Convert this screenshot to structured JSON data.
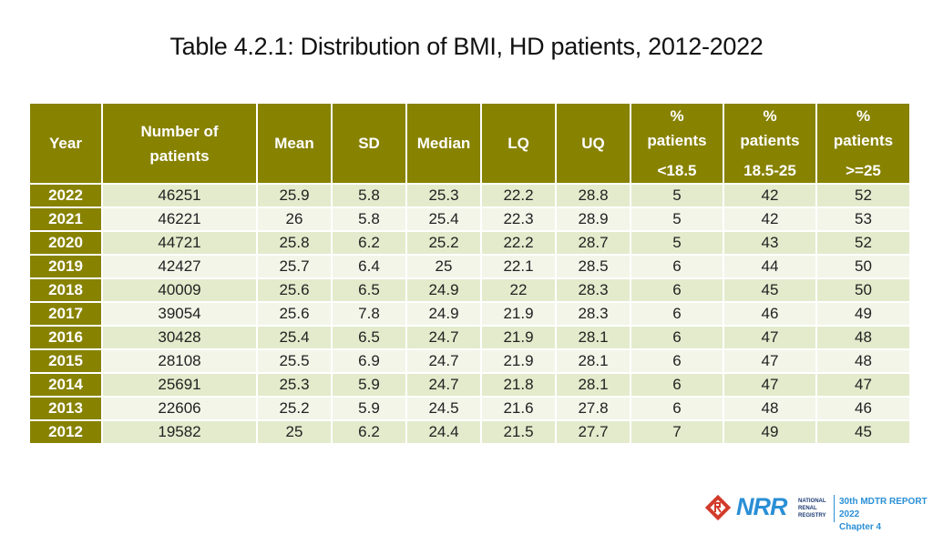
{
  "title": "Table 4.2.1: Distribution of BMI, HD patients, 2012-2022",
  "table": {
    "headers": {
      "year": "Year",
      "patients_l1": "Number of",
      "patients_l2": "patients",
      "mean": "Mean",
      "sd": "SD",
      "median": "Median",
      "lq": "LQ",
      "uq": "UQ",
      "pct1_l1": "%",
      "pct1_l2": "patients",
      "pct1_l3": "<18.5",
      "pct2_l1": "%",
      "pct2_l2": "patients",
      "pct2_l3": "18.5-25",
      "pct3_l1": "%",
      "pct3_l2": "patients",
      "pct3_l3": ">=25"
    },
    "rows": [
      [
        "2022",
        "46251",
        "25.9",
        "5.8",
        "25.3",
        "22.2",
        "28.8",
        "5",
        "42",
        "52"
      ],
      [
        "2021",
        "46221",
        "26",
        "5.8",
        "25.4",
        "22.3",
        "28.9",
        "5",
        "42",
        "53"
      ],
      [
        "2020",
        "44721",
        "25.8",
        "6.2",
        "25.2",
        "22.2",
        "28.7",
        "5",
        "43",
        "52"
      ],
      [
        "2019",
        "42427",
        "25.7",
        "6.4",
        "25",
        "22.1",
        "28.5",
        "6",
        "44",
        "50"
      ],
      [
        "2018",
        "40009",
        "25.6",
        "6.5",
        "24.9",
        "22",
        "28.3",
        "6",
        "45",
        "50"
      ],
      [
        "2017",
        "39054",
        "25.6",
        "7.8",
        "24.9",
        "21.9",
        "28.3",
        "6",
        "46",
        "49"
      ],
      [
        "2016",
        "30428",
        "25.4",
        "6.5",
        "24.7",
        "21.9",
        "28.1",
        "6",
        "47",
        "48"
      ],
      [
        "2015",
        "28108",
        "25.5",
        "6.9",
        "24.7",
        "21.9",
        "28.1",
        "6",
        "47",
        "48"
      ],
      [
        "2014",
        "25691",
        "25.3",
        "5.9",
        "24.7",
        "21.8",
        "28.1",
        "6",
        "47",
        "47"
      ],
      [
        "2013",
        "22606",
        "25.2",
        "5.9",
        "24.5",
        "21.6",
        "27.8",
        "6",
        "48",
        "46"
      ],
      [
        "2012",
        "19582",
        "25",
        "6.2",
        "24.4",
        "21.5",
        "27.7",
        "7",
        "49",
        "45"
      ]
    ]
  },
  "footer": {
    "logo_text": "NRR",
    "logo_sub": [
      "NATIONAL",
      "RENAL",
      "REGISTRY"
    ],
    "report_title": "30th MDTR REPORT 2022",
    "chapter": "Chapter 4",
    "colors": {
      "logo_blue": "#2a8fd6",
      "logo_red": "#d23a2a",
      "header_olive": "#878200"
    }
  }
}
